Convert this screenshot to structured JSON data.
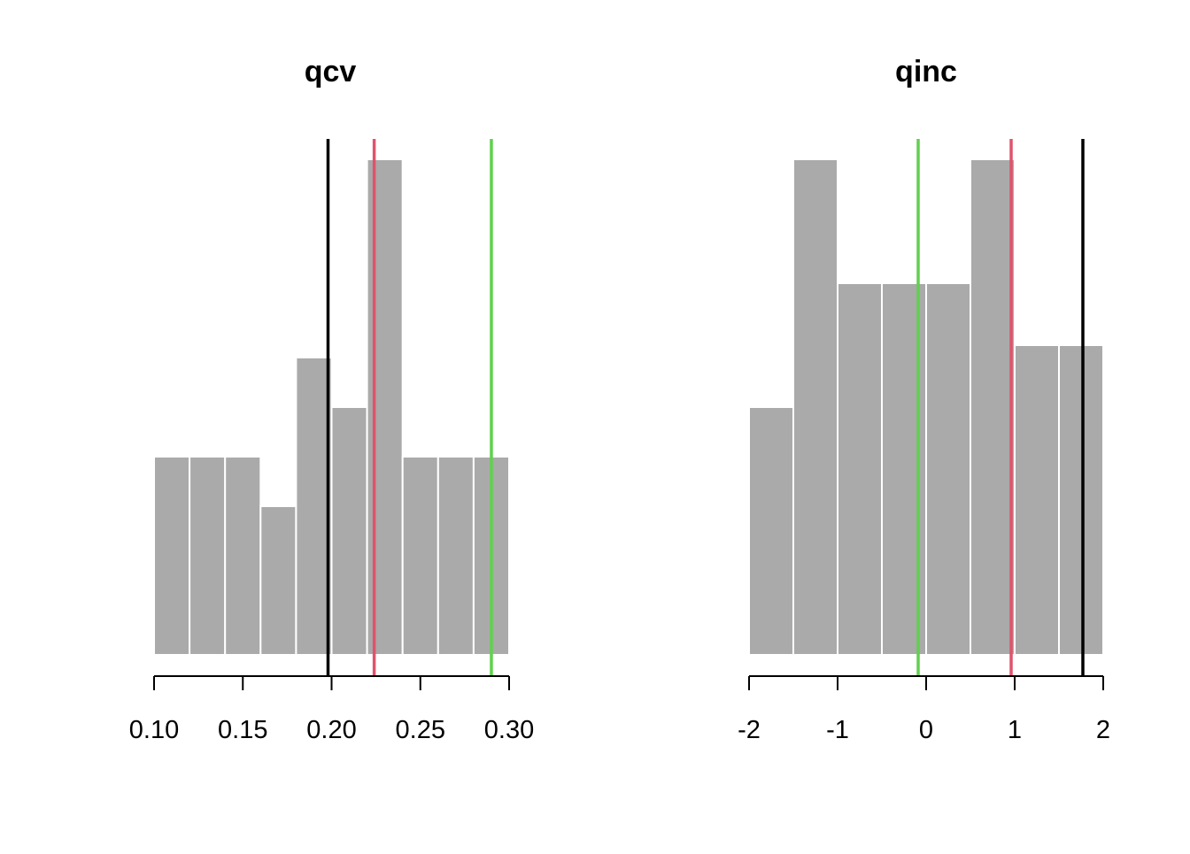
{
  "chart_data": [
    {
      "type": "histogram",
      "title": "qcv",
      "xlim": [
        0.1,
        0.3
      ],
      "ticks": [
        0.1,
        0.15,
        0.2,
        0.25,
        0.3
      ],
      "tick_labels": [
        "0.10",
        "0.15",
        "0.20",
        "0.25",
        "0.30"
      ],
      "bin_edges": [
        0.1,
        0.12,
        0.14,
        0.16,
        0.18,
        0.2,
        0.22,
        0.24,
        0.26,
        0.28,
        0.3
      ],
      "counts": [
        4,
        4,
        4,
        3,
        6,
        5,
        10,
        4,
        4,
        4
      ],
      "ymax": 10,
      "bar_color": "#aaaaaa",
      "vlines": [
        {
          "x": 0.198,
          "color": "#000000"
        },
        {
          "x": 0.224,
          "color": "#DF536B"
        },
        {
          "x": 0.29,
          "color": "#61D04F"
        }
      ]
    },
    {
      "type": "histogram",
      "title": "qinc",
      "xlim": [
        -2,
        2
      ],
      "ticks": [
        -2,
        -1,
        0,
        1,
        2
      ],
      "tick_labels": [
        "-2",
        "-1",
        "0",
        "1",
        "2"
      ],
      "bin_edges": [
        -2,
        -1.5,
        -1,
        -0.5,
        0,
        0.5,
        1,
        1.5,
        2
      ],
      "counts": [
        4,
        8,
        6,
        6,
        6,
        8,
        5,
        5
      ],
      "ymax": 8,
      "bar_color": "#aaaaaa",
      "vlines": [
        {
          "x": -0.09,
          "color": "#61D04F"
        },
        {
          "x": 0.96,
          "color": "#DF536B"
        },
        {
          "x": 1.77,
          "color": "#000000"
        }
      ]
    }
  ]
}
